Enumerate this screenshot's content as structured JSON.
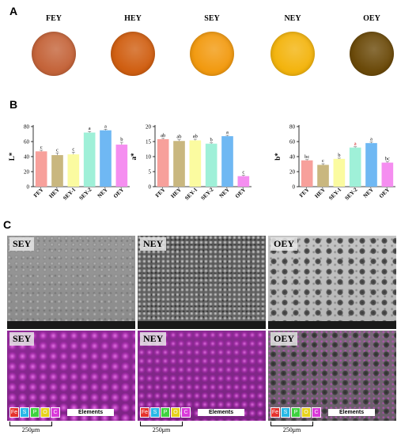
{
  "panels": {
    "a": "A",
    "b": "B",
    "c": "C"
  },
  "samples_a": [
    {
      "label": "FEY",
      "color": "#c4643a"
    },
    {
      "label": "HEY",
      "color": "#d05f12"
    },
    {
      "label": "SEY",
      "color": "#f29a10"
    },
    {
      "label": "NEY",
      "color": "#f3b40e"
    },
    {
      "label": "OEY",
      "color": "#6b4a0a"
    }
  ],
  "chart_data": [
    {
      "type": "bar",
      "ylabel": "L*",
      "ylim": [
        0,
        80
      ],
      "yticks": [
        0,
        20,
        40,
        60,
        80
      ],
      "categories": [
        "FEY",
        "HEY",
        "SEY-1",
        "SEY-2",
        "NEY",
        "OEY"
      ],
      "values": [
        47,
        42,
        43,
        72,
        75,
        56
      ],
      "errors": [
        1.5,
        3,
        3,
        1.5,
        1.5,
        3
      ],
      "letters": [
        "c",
        "c",
        "c",
        "a",
        "a",
        "b"
      ],
      "colors": [
        "#f7a09b",
        "#c9b77f",
        "#fbfba0",
        "#9ff0d8",
        "#6fb8f3",
        "#f58ef0"
      ]
    },
    {
      "type": "bar",
      "ylabel": "a*",
      "ylim": [
        0,
        20
      ],
      "yticks": [
        0,
        5,
        10,
        15,
        20
      ],
      "categories": [
        "FEY",
        "HEY",
        "SEY-1",
        "SEY-2",
        "NEY",
        "OEY"
      ],
      "values": [
        15.8,
        15.2,
        15.4,
        14.3,
        16.8,
        3.5
      ],
      "errors": [
        0.3,
        0.4,
        0.4,
        0.3,
        0.3,
        0.3
      ],
      "letters": [
        "ab",
        "ab",
        "ab",
        "b",
        "a",
        "c"
      ],
      "colors": [
        "#f7a09b",
        "#c9b77f",
        "#fbfba0",
        "#9ff0d8",
        "#6fb8f3",
        "#f58ef0"
      ]
    },
    {
      "type": "bar",
      "ylabel": "b*",
      "ylim": [
        0,
        80
      ],
      "yticks": [
        0,
        20,
        40,
        60,
        80
      ],
      "categories": [
        "FEY",
        "HEY",
        "SEY-1",
        "SEY-2",
        "NEY",
        "OEY"
      ],
      "values": [
        35,
        29,
        37,
        52,
        58,
        32
      ],
      "errors": [
        1,
        1.5,
        1,
        1,
        1.5,
        1
      ],
      "letters": [
        "bc",
        "c",
        "b",
        "a",
        "a",
        "bc"
      ],
      "colors": [
        "#f7a09b",
        "#c9b77f",
        "#fbfba0",
        "#9ff0d8",
        "#6fb8f3",
        "#f58ef0"
      ]
    }
  ],
  "images_c": {
    "sem": [
      {
        "label": "SEY"
      },
      {
        "label": "NEY"
      },
      {
        "label": "OEY"
      }
    ],
    "eds": [
      {
        "label": "SEY"
      },
      {
        "label": "NEY"
      },
      {
        "label": "OEY"
      }
    ],
    "elements": [
      {
        "symbol": "Fe",
        "color": "#e5322d"
      },
      {
        "symbol": "S",
        "color": "#28b8e6"
      },
      {
        "symbol": "P",
        "color": "#3fd23f"
      },
      {
        "symbol": "O",
        "color": "#e6d21c"
      },
      {
        "symbol": "C",
        "color": "#d93ad9"
      }
    ],
    "elements_title": "Elements",
    "scale_label": "250μm"
  }
}
